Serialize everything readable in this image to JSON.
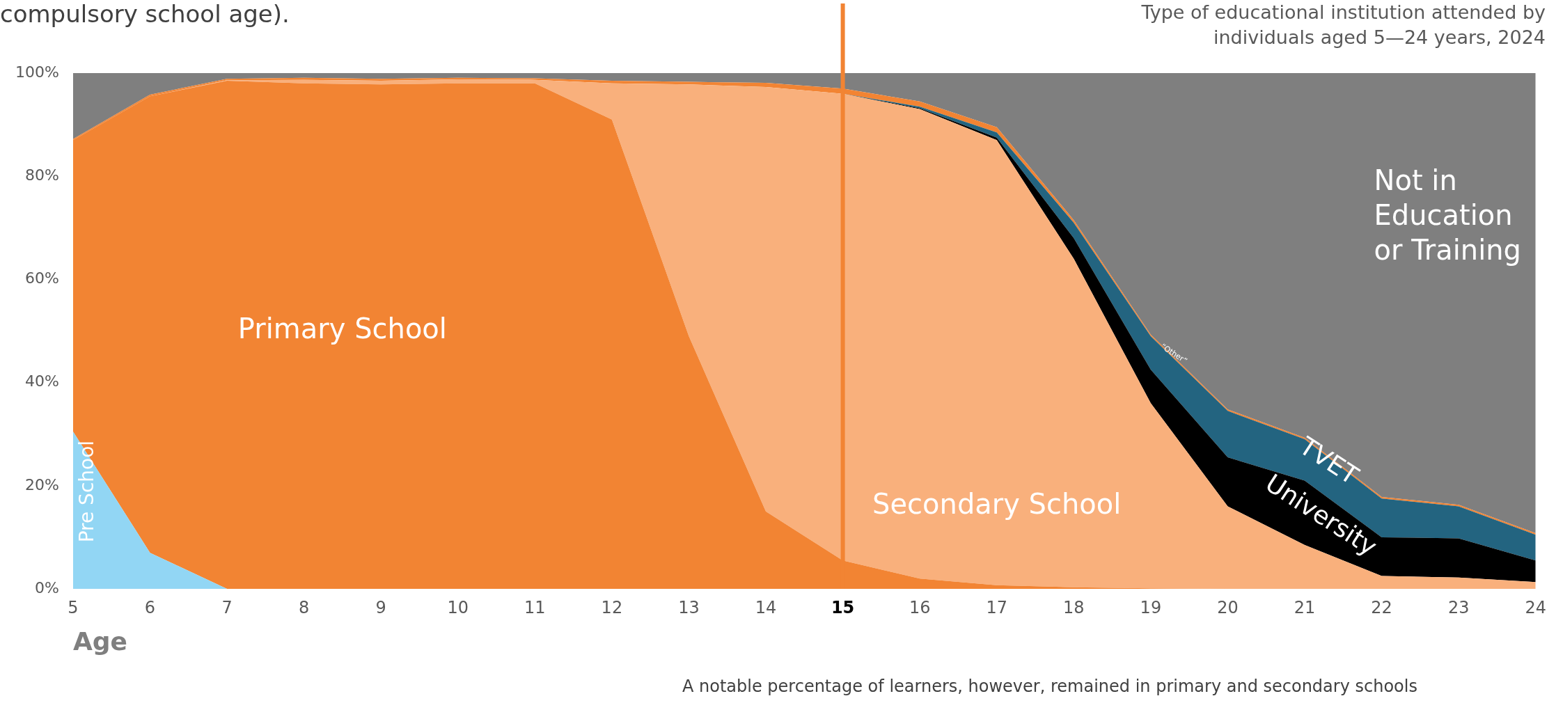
{
  "chart_data": {
    "type": "area",
    "stacked": true,
    "title": "Type of educational institution attended by individuals aged 5—24 years, 2024",
    "xlabel": "Age",
    "annotations": [
      "compulsory school age).",
      "A notable percentage of learners, however, remained in primary and secondary schools"
    ],
    "x": [
      5,
      6,
      7,
      8,
      9,
      10,
      11,
      12,
      13,
      14,
      15,
      16,
      17,
      18,
      19,
      20,
      21,
      22,
      23,
      24
    ],
    "xlim": [
      5,
      24
    ],
    "xticks": [
      5,
      6,
      7,
      8,
      9,
      10,
      11,
      12,
      13,
      14,
      15,
      16,
      17,
      18,
      19,
      20,
      21,
      22,
      23,
      24
    ],
    "ylim": [
      0,
      100
    ],
    "yticks": [
      {
        "value": 0,
        "label": "0%"
      },
      {
        "value": 20,
        "label": "20%"
      },
      {
        "value": 40,
        "label": "40%"
      },
      {
        "value": 60,
        "label": "60%"
      },
      {
        "value": 80,
        "label": "80%"
      },
      {
        "value": 100,
        "label": "100%"
      }
    ],
    "grid": false,
    "legend": false,
    "marker": "none",
    "ref_lines": [
      {
        "axis": "x",
        "value": 15,
        "color": "#f28433"
      }
    ],
    "series": [
      {
        "name": "Pre School",
        "color": "#92d6f4",
        "values": [
          30.5,
          7,
          0,
          0,
          0,
          0,
          0,
          0,
          0,
          0,
          0,
          0,
          0,
          0,
          0,
          0,
          0,
          0,
          0,
          0
        ]
      },
      {
        "name": "Primary School",
        "color": "#f28433",
        "values": [
          56.5,
          88.5,
          98.5,
          98,
          97.8,
          98,
          98,
          91,
          49,
          15,
          5.5,
          2,
          0.7,
          0.3,
          0.1,
          0,
          0,
          0,
          0,
          0
        ]
      },
      {
        "name": "Secondary School",
        "color": "#f9b07c",
        "values": [
          0,
          0,
          0.1,
          0.7,
          0.7,
          0.8,
          0.7,
          7,
          48.8,
          82.3,
          90.5,
          91,
          86.3,
          63.7,
          35.9,
          16,
          8.5,
          2.5,
          2.2,
          1.3
        ]
      },
      {
        "name": "University",
        "color": "#000000",
        "values": [
          0,
          0,
          0,
          0,
          0,
          0,
          0,
          0,
          0,
          0,
          0,
          0.2,
          0.5,
          4,
          6.5,
          9.5,
          12.5,
          7.5,
          7.6,
          4.2
        ]
      },
      {
        "name": "TVET",
        "color": "#236480",
        "values": [
          0,
          0,
          0,
          0,
          0,
          0,
          0,
          0,
          0,
          0,
          0,
          0.3,
          1,
          3,
          6.5,
          9,
          8,
          7.5,
          6.2,
          5
        ]
      },
      {
        "name": "“Other”",
        "color": "#f28433",
        "values": [
          0.2,
          0.3,
          0.3,
          0.4,
          0.4,
          0.3,
          0.3,
          0.5,
          0.5,
          0.8,
          1,
          1,
          1,
          0.5,
          0.3,
          0.3,
          0.3,
          0.3,
          0.3,
          0.3
        ]
      },
      {
        "name": "Not in Education or Training",
        "color": "#7f7f7f",
        "values": [
          12.8,
          4.2,
          1.1,
          0.9,
          1.1,
          0.9,
          1,
          1.5,
          1.7,
          1.9,
          3,
          5.5,
          10.5,
          28.5,
          50.7,
          65.2,
          70.7,
          82.2,
          83.7,
          89.2
        ]
      }
    ]
  }
}
